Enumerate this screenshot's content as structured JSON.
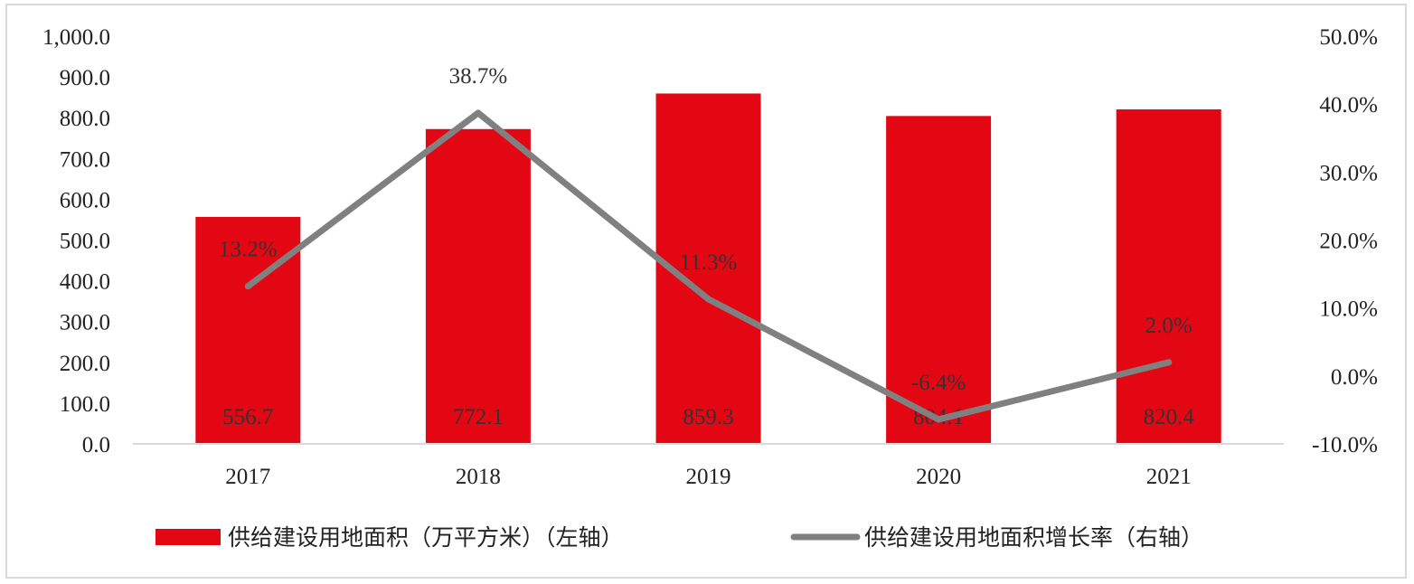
{
  "chart_data": {
    "type": "bar",
    "categories": [
      "2017",
      "2018",
      "2019",
      "2020",
      "2021"
    ],
    "series": [
      {
        "name": "供给建设用地面积（万平方米）（左轴）",
        "type": "bar",
        "axis": "left",
        "color": "#e30613",
        "values": [
          556.7,
          772.1,
          859.3,
          804.1,
          820.4
        ],
        "labels": [
          "556.7",
          "772.1",
          "859.3",
          "804.1",
          "820.4"
        ]
      },
      {
        "name": "供给建设用地面积增长率（右轴）",
        "type": "line",
        "axis": "right",
        "color": "#808080",
        "values": [
          13.2,
          38.7,
          11.3,
          -6.4,
          2.0
        ],
        "labels": [
          "13.2%",
          "38.7%",
          "11.3%",
          "-6.4%",
          "2.0%"
        ]
      }
    ],
    "left_axis": {
      "ylim": [
        0,
        1000
      ],
      "ticks": [
        0,
        100,
        200,
        300,
        400,
        500,
        600,
        700,
        800,
        900,
        1000
      ],
      "tick_labels": [
        "0.0",
        "100.0",
        "200.0",
        "300.0",
        "400.0",
        "500.0",
        "600.0",
        "700.0",
        "800.0",
        "900.0",
        "1,000.0"
      ]
    },
    "right_axis": {
      "ylim": [
        -10,
        50
      ],
      "ticks": [
        -10,
        0,
        10,
        20,
        30,
        40,
        50
      ],
      "tick_labels": [
        "-10.0%",
        "0.0%",
        "10.0%",
        "20.0%",
        "30.0%",
        "40.0%",
        "50.0%"
      ]
    },
    "grid": false,
    "legend_position": "bottom"
  }
}
